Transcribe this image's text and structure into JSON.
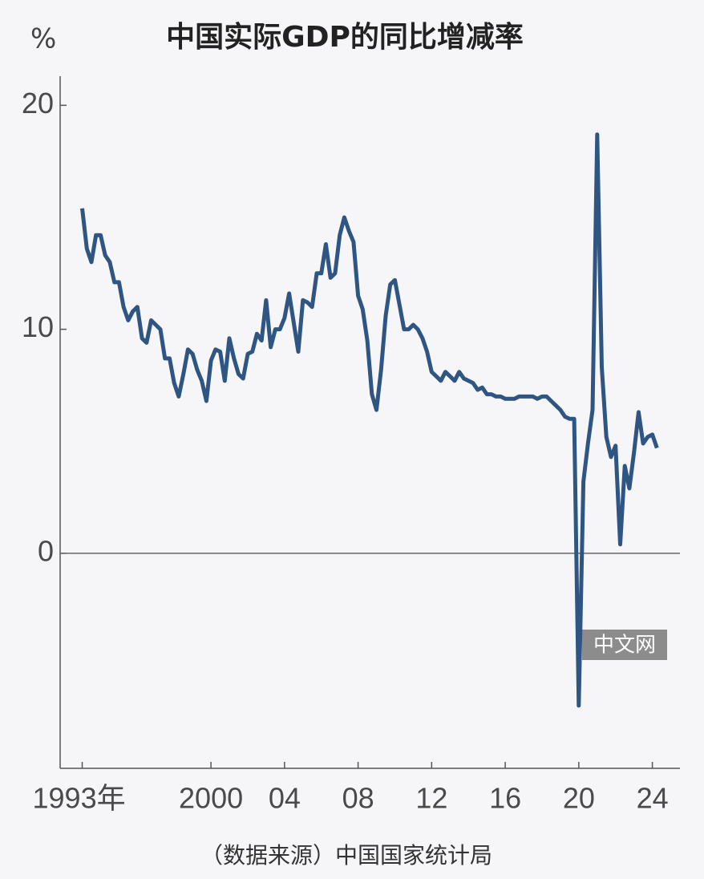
{
  "chart_data": {
    "type": "line",
    "title": "中国实际GDP的同比增减率",
    "y_unit": "%",
    "source": "（数据来源）中国国家统计局",
    "watermark": "中文网",
    "x": [
      1993,
      1993.25,
      1993.5,
      1993.75,
      1994,
      1994.25,
      1994.5,
      1994.75,
      1995,
      1995.25,
      1995.5,
      1995.75,
      1996,
      1996.25,
      1996.5,
      1996.75,
      1997,
      1997.25,
      1997.5,
      1997.75,
      1998,
      1998.25,
      1998.5,
      1998.75,
      1999,
      1999.25,
      1999.5,
      1999.75,
      2000,
      2000.25,
      2000.5,
      2000.75,
      2001,
      2001.25,
      2001.5,
      2001.75,
      2002,
      2002.25,
      2002.5,
      2002.75,
      2003,
      2003.25,
      2003.5,
      2003.75,
      2004,
      2004.25,
      2004.5,
      2004.75,
      2005,
      2005.25,
      2005.5,
      2005.75,
      2006,
      2006.25,
      2006.5,
      2006.75,
      2007,
      2007.25,
      2007.5,
      2007.75,
      2008,
      2008.25,
      2008.5,
      2008.75,
      2009,
      2009.25,
      2009.5,
      2009.75,
      2010,
      2010.25,
      2010.5,
      2010.75,
      2011,
      2011.25,
      2011.5,
      2011.75,
      2012,
      2012.25,
      2012.5,
      2012.75,
      2013,
      2013.25,
      2013.5,
      2013.75,
      2014,
      2014.25,
      2014.5,
      2014.75,
      2015,
      2015.25,
      2015.5,
      2015.75,
      2016,
      2016.25,
      2016.5,
      2016.75,
      2017,
      2017.25,
      2017.5,
      2017.75,
      2018,
      2018.25,
      2018.5,
      2018.75,
      2019,
      2019.25,
      2019.5,
      2019.75,
      2020,
      2020.25,
      2020.5,
      2020.75,
      2021,
      2021.25,
      2021.5,
      2021.75,
      2022,
      2022.25,
      2022.5,
      2022.75,
      2023,
      2023.25,
      2023.5,
      2023.75,
      2024,
      2024.25
    ],
    "series": [
      {
        "color": "#2f5583",
        "values": [
          15.4,
          13.6,
          13.0,
          14.2,
          14.2,
          13.3,
          13.0,
          12.1,
          12.1,
          11.0,
          10.4,
          10.8,
          11.0,
          9.6,
          9.4,
          10.4,
          10.2,
          10.0,
          8.7,
          8.7,
          7.6,
          7.0,
          8.0,
          9.1,
          8.9,
          8.2,
          7.7,
          6.8,
          8.6,
          9.1,
          9.0,
          7.7,
          9.6,
          8.7,
          8.0,
          7.8,
          8.9,
          9.0,
          9.8,
          9.5,
          11.3,
          9.2,
          10.0,
          10.0,
          10.5,
          11.6,
          10.3,
          9.0,
          11.3,
          11.2,
          11.0,
          12.5,
          12.5,
          13.8,
          12.3,
          12.5,
          14.2,
          15.0,
          14.4,
          13.9,
          11.5,
          10.9,
          9.5,
          7.1,
          6.4,
          8.2,
          10.6,
          12.0,
          12.2,
          11.1,
          10.0,
          10.0,
          10.2,
          10.0,
          9.6,
          9.0,
          8.1,
          7.9,
          7.7,
          8.1,
          7.9,
          7.7,
          8.1,
          7.8,
          7.7,
          7.6,
          7.3,
          7.4,
          7.1,
          7.1,
          7.0,
          7.0,
          6.9,
          6.9,
          6.9,
          7.0,
          7.0,
          7.0,
          7.0,
          6.9,
          7.0,
          7.0,
          6.8,
          6.6,
          6.4,
          6.1,
          6.0,
          6.0,
          -6.8,
          3.2,
          4.9,
          6.4,
          18.7,
          8.3,
          5.2,
          4.3,
          4.8,
          0.4,
          3.9,
          2.9,
          4.5,
          6.3,
          4.9,
          5.2,
          5.3,
          4.7
        ]
      }
    ],
    "xlim": [
      1991.8,
      2025.5
    ],
    "xticks": [
      {
        "value": 1993,
        "label": "1993年"
      },
      2000,
      {
        "value": 2004,
        "label": "04"
      },
      {
        "value": 2008,
        "label": "08"
      },
      {
        "value": 2012,
        "label": "12"
      },
      {
        "value": 2016,
        "label": "16"
      },
      {
        "value": 2020,
        "label": "20"
      },
      {
        "value": 2024,
        "label": "24"
      }
    ],
    "ylim": [
      -9.6,
      21.3
    ],
    "yticks": [
      0,
      10,
      20
    ],
    "zero_line": true,
    "grid": false
  }
}
